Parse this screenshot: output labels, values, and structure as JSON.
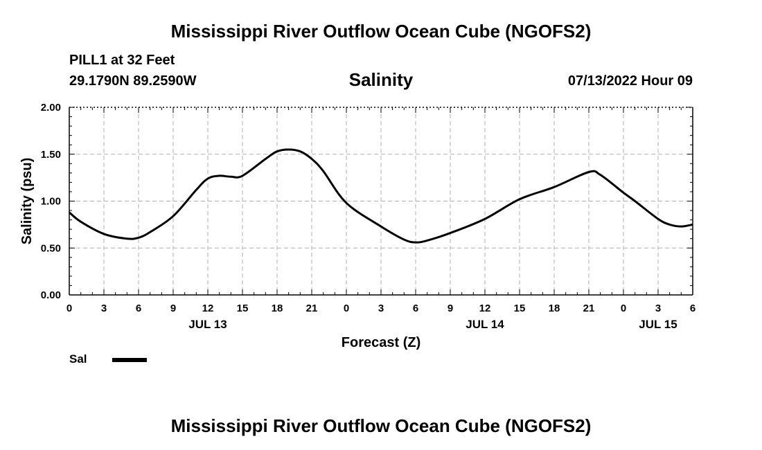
{
  "header": {
    "title": "Mississippi River Outflow Ocean Cube (NGOFS2)",
    "station": "PILL1 at 32 Feet",
    "coords": "29.1790N  89.2590W",
    "variable": "Salinity",
    "datetime": "07/13/2022 Hour 09"
  },
  "footer": {
    "title": "Mississippi River Outflow Ocean Cube (NGOFS2)"
  },
  "legend": {
    "label": "Sal"
  },
  "chart_data": {
    "type": "line",
    "title": "Salinity",
    "xlabel": "Forecast (Z)",
    "ylabel": "Salinity (psu)",
    "xlim": [
      0,
      54
    ],
    "ylim": [
      0,
      2
    ],
    "yticks": [
      "0.00",
      "0.50",
      "1.00",
      "1.50",
      "2.00"
    ],
    "xtick_hours": [
      0,
      3,
      6,
      9,
      12,
      15,
      18,
      21,
      24,
      27,
      30,
      33,
      36,
      39,
      42,
      45,
      48,
      51,
      54
    ],
    "xtick_labels": [
      "0",
      "3",
      "6",
      "9",
      "12",
      "15",
      "18",
      "21",
      "0",
      "3",
      "6",
      "9",
      "12",
      "15",
      "18",
      "21",
      "0",
      "3",
      "6"
    ],
    "day_labels": [
      {
        "hour": 12,
        "label": "JUL 13"
      },
      {
        "hour": 36,
        "label": "JUL 14"
      },
      {
        "hour": 51,
        "label": "JUL 15"
      }
    ],
    "series": [
      {
        "name": "Sal",
        "color": "#000000",
        "x": [
          0,
          1,
          3,
          5,
          6,
          7,
          9,
          11,
          12,
          13,
          14,
          15,
          17,
          18,
          19,
          20,
          21,
          22,
          24,
          27,
          29,
          30,
          31,
          33,
          36,
          39,
          42,
          45,
          46,
          48,
          49,
          51,
          52,
          53,
          54
        ],
        "y": [
          0.88,
          0.78,
          0.65,
          0.6,
          0.61,
          0.67,
          0.84,
          1.12,
          1.24,
          1.27,
          1.26,
          1.27,
          1.45,
          1.53,
          1.55,
          1.53,
          1.45,
          1.32,
          0.98,
          0.73,
          0.59,
          0.56,
          0.58,
          0.66,
          0.81,
          1.02,
          1.15,
          1.31,
          1.28,
          1.09,
          1.0,
          0.81,
          0.75,
          0.73,
          0.75
        ]
      }
    ]
  }
}
